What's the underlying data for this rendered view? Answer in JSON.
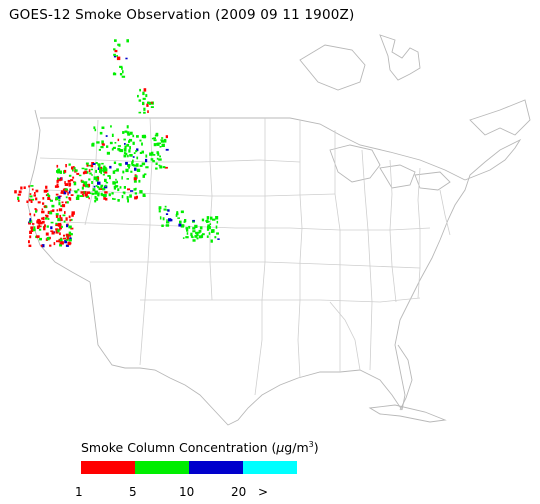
{
  "title": "GOES-12 Smoke Observation (2009 09 11  1900Z)",
  "legend": {
    "title_prefix": "Smoke Column Concentration (",
    "title_mu": "μ",
    "title_unit": "g/m",
    "title_sup": "3",
    "title_suffix": ")",
    "classes": [
      {
        "color": "#ff0000",
        "from": "1",
        "to": "5"
      },
      {
        "color": "#00ee00",
        "from": "5",
        "to": "10"
      },
      {
        "color": "#0000cc",
        "from": "10",
        "to": "20"
      },
      {
        "color": "#00ffff",
        "from": "20",
        "to": ">"
      }
    ],
    "ticks": [
      "1",
      "5",
      "10",
      "20",
      ">"
    ]
  },
  "colors": {
    "state_lines": "#c0c0c0",
    "coast_lines": "#a8a8a8"
  }
}
